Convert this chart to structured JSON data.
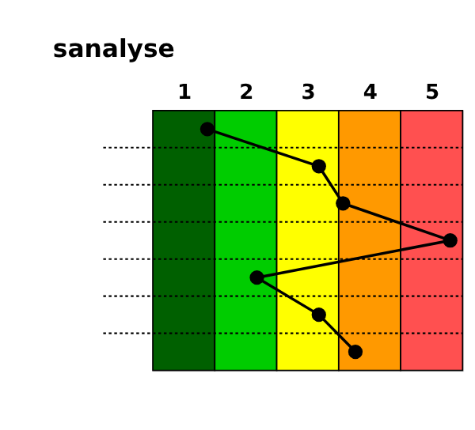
{
  "chart_data": {
    "type": "line",
    "title": "sanalyse",
    "categories": [
      null,
      null,
      null,
      null,
      null,
      null,
      null
    ],
    "series": [
      {
        "color": "#000000",
        "values": [
          1.38,
          3.18,
          3.57,
          5.3,
          2.18,
          3.18,
          3.77
        ]
      }
    ],
    "xlim": [
      0.5,
      5.5
    ],
    "xticks": [
      1,
      2,
      3,
      4,
      5
    ],
    "bands": [
      {
        "axis": "x",
        "from": 0.5,
        "to": 1.5,
        "color": "#006000"
      },
      {
        "axis": "x",
        "from": 1.5,
        "to": 2.5,
        "color": "#00cc00"
      },
      {
        "axis": "x",
        "from": 2.5,
        "to": 3.5,
        "color": "#ffff00"
      },
      {
        "axis": "x",
        "from": 3.5,
        "to": 4.5,
        "color": "#ff9900"
      },
      {
        "axis": "x",
        "from": 4.5,
        "to": 5.5,
        "color": "#ff5050"
      }
    ],
    "orientation": "horizontal",
    "grid": "y",
    "marker": "circle",
    "line_style": "solid"
  }
}
